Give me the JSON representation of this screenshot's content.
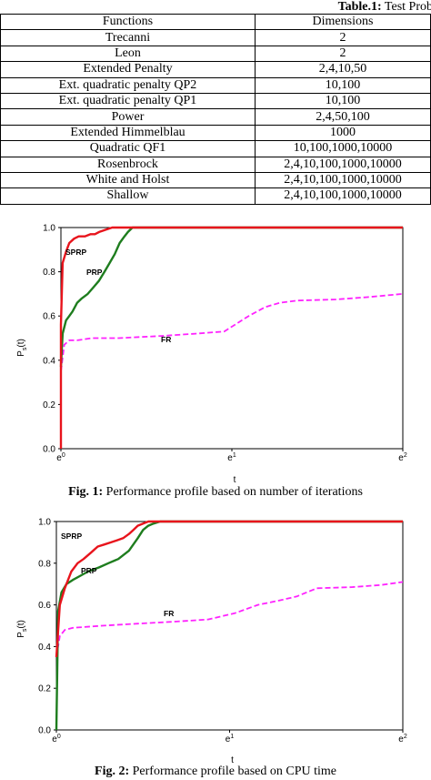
{
  "table": {
    "caption_bold": "Table.1:",
    "caption_rest": " Test Prob",
    "headers": [
      "Functions",
      "Dimensions"
    ],
    "rows": [
      [
        "Trecanni",
        "2"
      ],
      [
        "Leon",
        "2"
      ],
      [
        "Extended Penalty",
        "2,4,10,50"
      ],
      [
        "Ext. quadratic penalty QP2",
        "10,100"
      ],
      [
        "Ext. quadratic penalty QP1",
        "10,100"
      ],
      [
        "Power",
        "2,4,50,100"
      ],
      [
        "Extended Himmelblau",
        "1000"
      ],
      [
        "Quadratic QF1",
        "10,100,1000,10000"
      ],
      [
        "Rosenbrock",
        "2,4,10,100,1000,10000"
      ],
      [
        "White and Holst",
        "2,4,10,100,1000,10000"
      ],
      [
        "Shallow",
        "2,4,10,100,1000,10000"
      ]
    ]
  },
  "fig1": {
    "caption_bold": "Fig. 1:",
    "caption_rest": " Performance profile based on number of iterations"
  },
  "fig2": {
    "caption_bold": "Fig. 2:",
    "caption_rest": " Performance profile based on CPU time"
  },
  "colors": {
    "SPRP": "#e8141c",
    "PRP": "#1e7d1e",
    "FR": "#ff22ff"
  },
  "chart_data": [
    {
      "type": "line",
      "title": "",
      "xlabel": "t",
      "ylabel": "Ps(t)",
      "xlim": [
        1,
        7.389
      ],
      "ylim": [
        0,
        1
      ],
      "x_ticks": [
        "e0",
        "e1",
        "e2"
      ],
      "y_ticks": [
        "0.0",
        "0.2",
        "0.4",
        "0.6",
        "0.8",
        "1.0"
      ],
      "grid": false,
      "series": [
        {
          "name": "SPRP",
          "style": "solid",
          "x": [
            1.0,
            1.0,
            1.01,
            1.03,
            1.05,
            1.08,
            1.11,
            1.15,
            1.19,
            1.22,
            1.25,
            1.3,
            1.35,
            1.4,
            7.389
          ],
          "y": [
            0.0,
            0.56,
            0.84,
            0.89,
            0.93,
            0.95,
            0.96,
            0.96,
            0.97,
            0.97,
            0.98,
            0.99,
            1.0,
            1.0,
            1.0
          ]
        },
        {
          "name": "PRP",
          "style": "solid",
          "x": [
            1.0,
            1.01,
            1.03,
            1.05,
            1.07,
            1.1,
            1.13,
            1.17,
            1.21,
            1.25,
            1.29,
            1.33,
            1.37,
            1.41,
            1.45,
            1.48,
            1.52,
            1.6,
            7.389
          ],
          "y": [
            0.37,
            0.52,
            0.58,
            0.6,
            0.62,
            0.66,
            0.68,
            0.7,
            0.73,
            0.76,
            0.8,
            0.84,
            0.88,
            0.93,
            0.96,
            0.98,
            1.0,
            1.0,
            1.0
          ]
        },
        {
          "name": "FR",
          "style": "dashed",
          "x": [
            1.0,
            1.02,
            1.05,
            1.1,
            1.2,
            1.4,
            1.8,
            2.2,
            2.6,
            3.0,
            3.3,
            3.6,
            4.0,
            5.0,
            6.0,
            7.389
          ],
          "y": [
            0.35,
            0.47,
            0.49,
            0.49,
            0.5,
            0.5,
            0.51,
            0.52,
            0.53,
            0.6,
            0.64,
            0.66,
            0.67,
            0.675,
            0.685,
            0.7
          ]
        }
      ],
      "annotations": [
        "SPRP",
        "PRP",
        "FR"
      ]
    },
    {
      "type": "line",
      "title": "",
      "xlabel": "t",
      "ylabel": "Ps(t)",
      "xlim": [
        1,
        7.389
      ],
      "ylim": [
        0,
        1
      ],
      "x_ticks": [
        "e0",
        "e1",
        "e2"
      ],
      "y_ticks": [
        "0.0",
        "0.2",
        "0.4",
        "0.6",
        "0.8",
        "1.0"
      ],
      "grid": false,
      "series": [
        {
          "name": "SPRP",
          "style": "solid",
          "x": [
            1.0,
            1.02,
            1.05,
            1.09,
            1.13,
            1.17,
            1.22,
            1.27,
            1.32,
            1.37,
            1.42,
            1.47,
            1.52,
            1.56,
            1.6,
            1.65,
            1.7,
            7.389
          ],
          "y": [
            0.35,
            0.6,
            0.68,
            0.76,
            0.8,
            0.82,
            0.85,
            0.88,
            0.89,
            0.9,
            0.91,
            0.92,
            0.94,
            0.96,
            0.98,
            0.99,
            1.0,
            1.0
          ]
        },
        {
          "name": "PRP",
          "style": "solid",
          "x": [
            1.0,
            1.01,
            1.03,
            1.06,
            1.1,
            1.15,
            1.2,
            1.28,
            1.35,
            1.43,
            1.52,
            1.6,
            1.65,
            1.7,
            1.75,
            1.82,
            7.389
          ],
          "y": [
            0.0,
            0.57,
            0.66,
            0.7,
            0.72,
            0.74,
            0.76,
            0.78,
            0.8,
            0.82,
            0.86,
            0.92,
            0.96,
            0.98,
            0.99,
            1.0,
            1.0
          ]
        },
        {
          "name": "FR",
          "style": "dashed",
          "x": [
            1.0,
            1.02,
            1.05,
            1.1,
            1.3,
            1.6,
            2.0,
            2.4,
            2.8,
            3.2,
            3.6,
            4.0,
            4.5,
            5.5,
            6.5,
            7.389
          ],
          "y": [
            0.35,
            0.45,
            0.48,
            0.49,
            0.5,
            0.51,
            0.52,
            0.53,
            0.56,
            0.6,
            0.62,
            0.64,
            0.68,
            0.685,
            0.695,
            0.71
          ]
        }
      ],
      "annotations": [
        "SPRP",
        "PRP",
        "FR"
      ]
    }
  ]
}
